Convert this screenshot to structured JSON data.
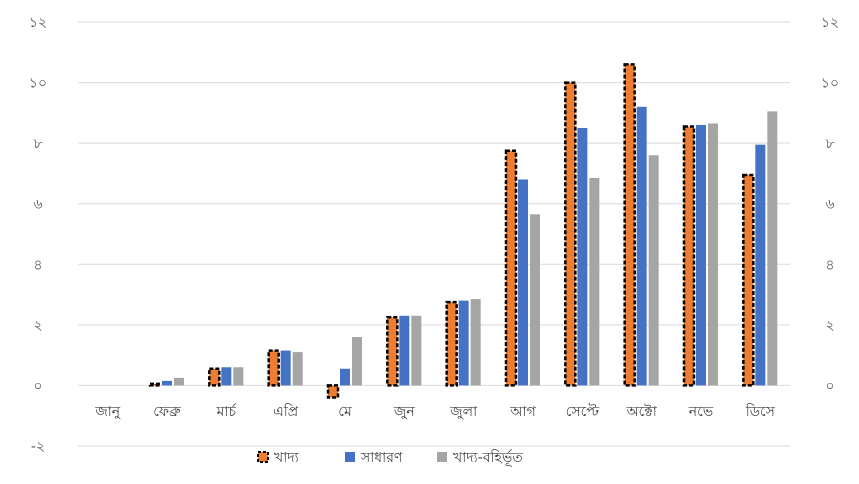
{
  "chart_data": {
    "type": "bar",
    "categories": [
      "জানু",
      "ফেব্রু",
      "মার্চ",
      "এপ্রি",
      "মে",
      "জুন",
      "জুলা",
      "আগ",
      "সেপ্টে",
      "অক্টো",
      "নভে",
      "ডিসে"
    ],
    "series": [
      {
        "name": "খাদ্য",
        "color": "#ED7D31",
        "outline": "dashed-black",
        "values": [
          0,
          0.05,
          0.55,
          1.15,
          -0.4,
          2.25,
          2.75,
          7.75,
          10.0,
          10.6,
          8.55,
          6.95
        ]
      },
      {
        "name": "সাধারণ",
        "color": "#4472C4",
        "values": [
          0,
          0.15,
          0.6,
          1.15,
          0.55,
          2.3,
          2.8,
          6.8,
          8.5,
          9.2,
          8.6,
          7.95
        ]
      },
      {
        "name": "খাদ্য-বহির্ভূত",
        "color": "#A5A5A5",
        "values": [
          0,
          0.25,
          0.6,
          1.1,
          1.6,
          2.3,
          2.85,
          5.65,
          6.85,
          7.6,
          8.65,
          9.05
        ]
      }
    ],
    "y_ticks": [
      "-২",
      "০",
      "২",
      "৪",
      "৬",
      "৮",
      "১০",
      "১২"
    ],
    "y_tick_values": [
      -2,
      0,
      2,
      4,
      6,
      8,
      10,
      12
    ],
    "right_y_ticks": [
      "০",
      "২",
      "৪",
      "৬",
      "৮",
      "১০",
      "১২"
    ],
    "ylim": [
      -2,
      12
    ],
    "grid": true,
    "legend_position": "bottom",
    "title": "",
    "xlabel": "",
    "ylabel": ""
  }
}
